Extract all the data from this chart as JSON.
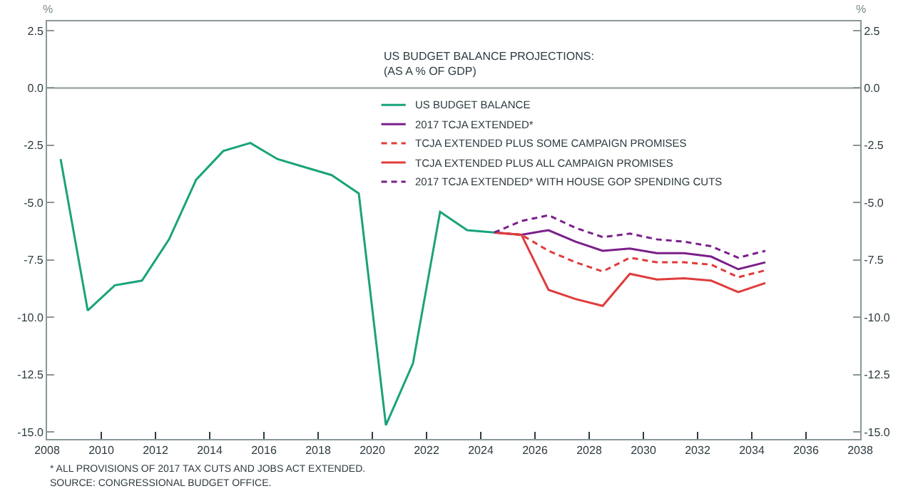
{
  "chart_data": {
    "type": "line",
    "title": "US BUDGET BALANCE PROJECTIONS:",
    "subtitle": "(AS A % OF GDP)",
    "ylabel": "%",
    "y2label": "%",
    "xlim": [
      2008,
      2038
    ],
    "xticks": [
      2008,
      2010,
      2012,
      2014,
      2016,
      2018,
      2020,
      2022,
      2024,
      2026,
      2028,
      2030,
      2032,
      2034,
      2036,
      2038
    ],
    "ylim": [
      -15.3,
      2.9
    ],
    "yticks": [
      2.5,
      {
        "value": 0,
        "label": "0.0"
      },
      -2.5,
      {
        "value": -5,
        "label": "-5.0"
      },
      -7.5,
      {
        "value": -10,
        "label": "-10.0"
      },
      -12.5,
      {
        "value": -15,
        "label": "-15.0"
      }
    ],
    "y2lim": [
      -15.3,
      2.9
    ],
    "y2ticks": [
      2.5,
      {
        "value": 0,
        "label": "0.0"
      },
      -2.5,
      {
        "value": -5,
        "label": "-5.0"
      },
      -7.5,
      {
        "value": -10,
        "label": "-10.0"
      },
      -12.5,
      {
        "value": -15,
        "label": "-15.0"
      }
    ],
    "legend": "top",
    "marker": "none",
    "ref_lines": [
      {
        "axis": "y",
        "value": 0,
        "label": null,
        "color": "#8a9699"
      }
    ],
    "series": [
      {
        "name": "US BUDGET BALANCE",
        "color": "#1aa37a",
        "line_style": "solid",
        "x": [
          2008.5,
          2009.5,
          2010.5,
          2011.5,
          2012.5,
          2013.5,
          2014.5,
          2015.5,
          2016.5,
          2017.5,
          2018.5,
          2019.5,
          2020.5,
          2021.5,
          2022.5,
          2023.5,
          2024.5
        ],
        "values": [
          -3.1,
          -9.7,
          -8.6,
          -8.4,
          -6.6,
          -4.0,
          -2.75,
          -2.4,
          -3.1,
          -3.45,
          -3.8,
          -4.6,
          -14.7,
          -12.0,
          -5.4,
          -6.2,
          -6.3
        ]
      },
      {
        "name": "2017 TCJA EXTENDED*",
        "color": "#7b1f8a",
        "line_style": "solid",
        "x": [
          2024.5,
          2025.5,
          2026.5,
          2027.5,
          2028.5,
          2029.5,
          2030.5,
          2031.5,
          2032.5,
          2033.5,
          2034.5
        ],
        "values": [
          -6.3,
          -6.4,
          -6.2,
          -6.7,
          -7.1,
          -7.0,
          -7.2,
          -7.2,
          -7.35,
          -7.9,
          -7.6
        ]
      },
      {
        "name": "TCJA EXTENDED PLUS SOME CAMPAIGN PROMISES",
        "color": "#e03c3c",
        "line_style": "dashed",
        "x": [
          2024.5,
          2025.5,
          2026.5,
          2027.5,
          2028.5,
          2029.5,
          2030.5,
          2031.5,
          2032.5,
          2033.5,
          2034.5
        ],
        "values": [
          -6.3,
          -6.4,
          -7.1,
          -7.6,
          -8.0,
          -7.4,
          -7.6,
          -7.6,
          -7.7,
          -8.25,
          -7.95
        ]
      },
      {
        "name": "TCJA EXTENDED PLUS ALL CAMPAIGN PROMISES",
        "color": "#e03c3c",
        "line_style": "solid",
        "x": [
          2024.5,
          2025.5,
          2026.5,
          2027.5,
          2028.5,
          2029.5,
          2030.5,
          2031.5,
          2032.5,
          2033.5,
          2034.5
        ],
        "values": [
          -6.3,
          -6.4,
          -8.8,
          -9.2,
          -9.5,
          -8.1,
          -8.35,
          -8.3,
          -8.4,
          -8.9,
          -8.5
        ]
      },
      {
        "name": "2017 TCJA EXTENDED* WITH HOUSE GOP SPENDING CUTS",
        "color": "#7b1f8a",
        "line_style": "dashed",
        "x": [
          2024.5,
          2025.5,
          2026.5,
          2027.5,
          2028.5,
          2029.5,
          2030.5,
          2031.5,
          2032.5,
          2033.5,
          2034.5
        ],
        "values": [
          -6.3,
          -5.8,
          -5.55,
          -6.1,
          -6.5,
          -6.35,
          -6.6,
          -6.7,
          -6.9,
          -7.4,
          -7.1
        ]
      }
    ],
    "annotations": [
      "* ALL PROVISIONS OF 2017 TAX CUTS AND JOBS ACT EXTENDED.",
      "SOURCE: CONGRESSIONAL BUDGET OFFICE."
    ]
  }
}
